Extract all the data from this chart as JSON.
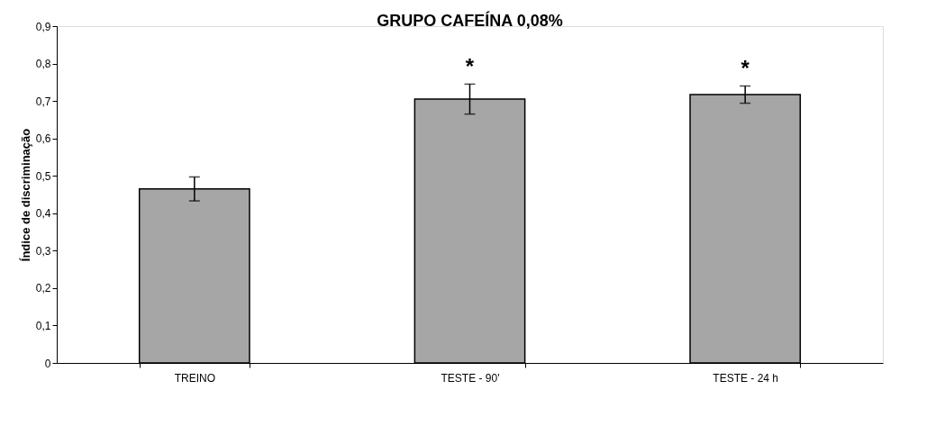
{
  "chart_data": {
    "type": "bar",
    "title": "GRUPO CAFEÍNA 0,08%",
    "ylabel": "Índice de discriminação",
    "categories": [
      "TREINO",
      "TESTE - 90'",
      "TESTE - 24 h"
    ],
    "values": [
      0.465,
      0.705,
      0.717
    ],
    "errors": [
      0.032,
      0.04,
      0.023
    ],
    "color": "#a6a6a6",
    "ylim": [
      0,
      0.9
    ],
    "yticks": [
      {
        "value": 0,
        "label": "0"
      },
      {
        "value": 0.1,
        "label": "0,1"
      },
      {
        "value": 0.2,
        "label": "0,2"
      },
      {
        "value": 0.3,
        "label": "0,3"
      },
      {
        "value": 0.4,
        "label": "0,4"
      },
      {
        "value": 0.5,
        "label": "0,5"
      },
      {
        "value": 0.6,
        "label": "0,6"
      },
      {
        "value": 0.7,
        "label": "0,7"
      },
      {
        "value": 0.8,
        "label": "0,8"
      },
      {
        "value": 0.9,
        "label": "0,9"
      }
    ],
    "annotations": [
      "*",
      "*"
    ],
    "grid": false
  }
}
